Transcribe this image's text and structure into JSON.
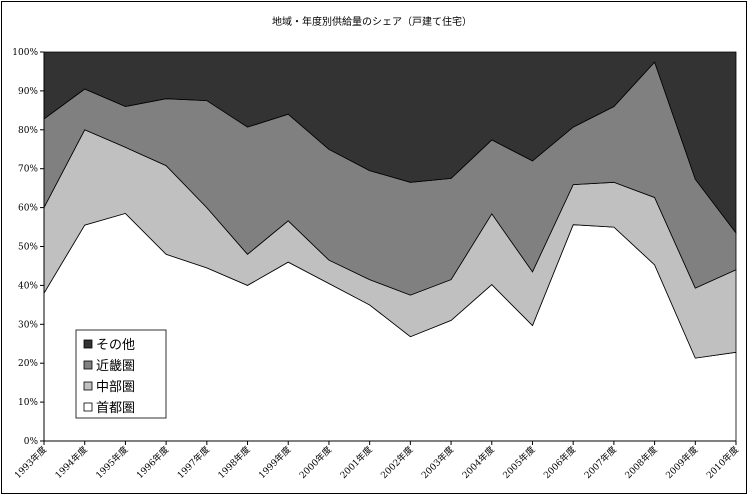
{
  "chart_data": {
    "type": "area",
    "stacked": true,
    "title": "地域・年度別供給量のシェア（戸建て住宅）",
    "x": [
      "1993年度",
      "1994年度",
      "1995年度",
      "1996年度",
      "1997年度",
      "1998年度",
      "1999年度",
      "2000年度",
      "2001年度",
      "2002年度",
      "2003年度",
      "2004年度",
      "2005年度",
      "2006年度",
      "2007年度",
      "2008年度",
      "2009年度",
      "2010年度"
    ],
    "yticks": [
      "0%",
      "10%",
      "20%",
      "30%",
      "40%",
      "50%",
      "60%",
      "70%",
      "80%",
      "90%",
      "100%"
    ],
    "ylim": [
      0,
      100
    ],
    "legend_position": "bottom-left",
    "series": [
      {
        "name": "首都圏",
        "color": "#ffffff",
        "values": [
          38.0,
          55.5,
          58.5,
          48.0,
          44.5,
          40.0,
          46.0,
          40.5,
          35.0,
          26.8,
          31.0,
          40.2,
          29.7,
          55.6,
          55.0,
          45.3,
          21.3,
          22.8
        ]
      },
      {
        "name": "中部圏",
        "color": "#c0c0c0",
        "values": [
          22.0,
          24.5,
          17.0,
          22.8,
          15.5,
          8.0,
          10.6,
          6.0,
          6.5,
          10.7,
          10.5,
          18.2,
          13.8,
          10.3,
          11.5,
          17.3,
          18.0,
          21.2
        ]
      },
      {
        "name": "近畿圏",
        "color": "#808080",
        "values": [
          22.8,
          10.5,
          10.5,
          17.2,
          27.5,
          32.7,
          27.4,
          28.5,
          28.0,
          29.0,
          26.0,
          19.0,
          28.5,
          14.8,
          19.5,
          34.8,
          28.0,
          9.5
        ]
      },
      {
        "name": "その他",
        "color": "#333333",
        "values": [
          17.2,
          9.5,
          14.0,
          12.0,
          12.5,
          19.3,
          16.0,
          25.0,
          30.5,
          33.5,
          32.5,
          22.6,
          28.0,
          19.3,
          14.0,
          2.6,
          32.7,
          46.5
        ]
      }
    ]
  }
}
